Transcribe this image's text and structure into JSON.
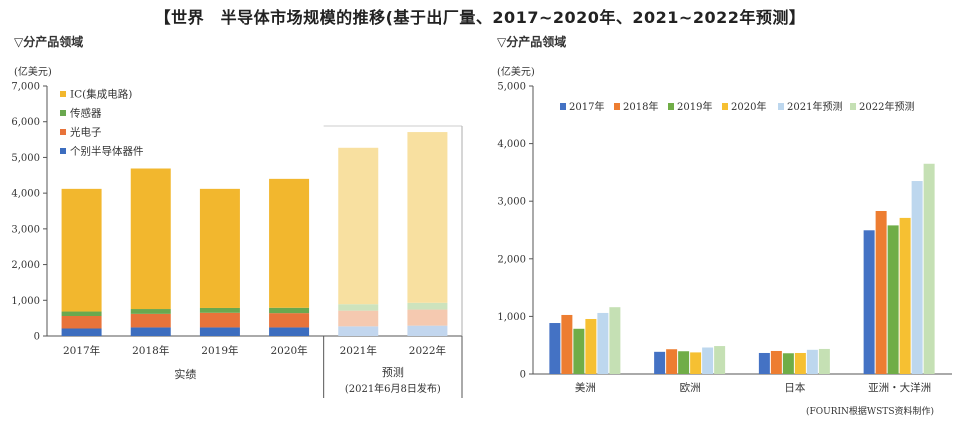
{
  "title": "【世界　半导体市场规模的推移(基于出厂量、2017~2020年、2021~2022年预测】",
  "source": "(FOURIN根据WSTS资料制作)",
  "chart_data": [
    {
      "type": "bar",
      "stacked": true,
      "subtitle": "▽分产品领域",
      "ylabel": "(亿美元)",
      "ylim": [
        0,
        7000
      ],
      "yticks": [
        "0",
        "1,000",
        "2,000",
        "3,000",
        "4,000",
        "5,000",
        "6,000",
        "7,000"
      ],
      "grid": false,
      "legend_position": "top-left",
      "categories": [
        "2017年",
        "2018年",
        "2019年",
        "2020年",
        "2021年",
        "2022年"
      ],
      "forecast_start_index": 4,
      "groups": [
        {
          "label": "实绩",
          "note": ""
        },
        {
          "label": "预测",
          "note": "(2021年6月8日发布)"
        }
      ],
      "colors": {
        "ic": "#F2B72E",
        "sensor": "#6AA84F",
        "opto": "#E8733A",
        "discrete": "#3C6DBF"
      },
      "forecast_colors": {
        "ic": "#F8E0A0",
        "sensor": "#CDE3BD",
        "opto": "#F5C9B0",
        "discrete": "#C2D6EE"
      },
      "series": [
        {
          "key": "discrete",
          "name": "个别半导体器件",
          "values": [
            210,
            240,
            240,
            240,
            270,
            290
          ]
        },
        {
          "key": "opto",
          "name": "光电子",
          "values": [
            350,
            380,
            410,
            400,
            440,
            450
          ]
        },
        {
          "key": "sensor",
          "name": "传感器",
          "values": [
            125,
            135,
            135,
            150,
            180,
            190
          ]
        },
        {
          "key": "ic",
          "name": "IC(集成电路)",
          "values": [
            3435,
            3935,
            3335,
            3610,
            4380,
            4780
          ]
        }
      ]
    },
    {
      "type": "bar",
      "stacked": false,
      "subtitle": "▽分产品领域",
      "ylabel": "(亿美元)",
      "ylim": [
        0,
        5000
      ],
      "yticks": [
        "0",
        "1,000",
        "2,000",
        "3,000",
        "4,000",
        "5,000"
      ],
      "grid": false,
      "legend_position": "top",
      "categories": [
        "美洲",
        "欧洲",
        "日本",
        "亚洲・大洋洲"
      ],
      "series": [
        {
          "name": "2017年",
          "color": "#4472C4",
          "values": [
            885,
            385,
            365,
            2495
          ]
        },
        {
          "name": "2018年",
          "color": "#ED7D31",
          "values": [
            1025,
            430,
            400,
            2830
          ]
        },
        {
          "name": "2019年",
          "color": "#70AD47",
          "values": [
            785,
            395,
            360,
            2580
          ]
        },
        {
          "name": "2020年",
          "color": "#F6C032",
          "values": [
            955,
            375,
            365,
            2710
          ]
        },
        {
          "name": "2021年预测",
          "color": "#BDD7EE",
          "values": [
            1060,
            460,
            420,
            3350
          ]
        },
        {
          "name": "2022年预测",
          "color": "#C5E0B4",
          "values": [
            1160,
            485,
            435,
            3650
          ]
        }
      ]
    }
  ]
}
